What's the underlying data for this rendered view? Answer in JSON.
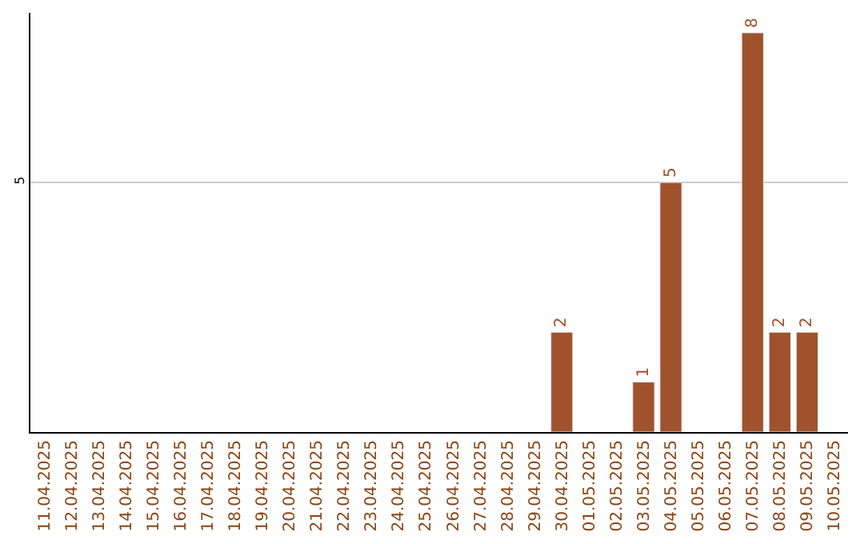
{
  "chart_data": {
    "type": "bar",
    "categories": [
      "11.04.2025",
      "12.04.2025",
      "13.04.2025",
      "14.04.2025",
      "15.04.2025",
      "16.04.2025",
      "17.04.2025",
      "18.04.2025",
      "19.04.2025",
      "20.04.2025",
      "21.04.2025",
      "22.04.2025",
      "23.04.2025",
      "24.04.2025",
      "25.04.2025",
      "26.04.2025",
      "27.04.2025",
      "28.04.2025",
      "29.04.2025",
      "30.04.2025",
      "01.05.2025",
      "02.05.2025",
      "03.05.2025",
      "04.05.2025",
      "05.05.2025",
      "06.05.2025",
      "07.05.2025",
      "08.05.2025",
      "09.05.2025",
      "10.05.2025"
    ],
    "values": [
      null,
      null,
      null,
      null,
      null,
      null,
      null,
      null,
      null,
      null,
      null,
      null,
      null,
      null,
      null,
      null,
      null,
      null,
      null,
      2,
      null,
      null,
      1,
      5,
      null,
      null,
      8,
      2,
      2,
      null
    ],
    "data_labels": true,
    "color": "#a0522d",
    "ylim": [
      0,
      8.4
    ],
    "yticks": [
      5
    ],
    "grid": "y",
    "legend": false
  }
}
